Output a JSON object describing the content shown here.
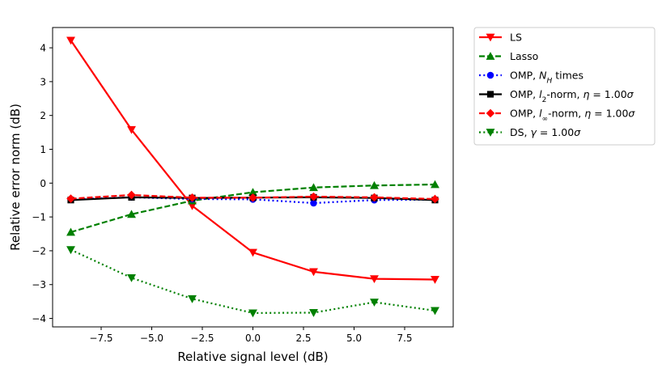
{
  "chart_data": {
    "type": "line",
    "title": "",
    "xlabel": "Relative signal level (dB)",
    "ylabel": "Relative error norm (dB)",
    "xlim": [
      -9.9,
      9.9
    ],
    "ylim": [
      -4.25,
      4.6
    ],
    "grid": false,
    "legend_position": "outside-right-top",
    "x": [
      -9,
      -6,
      -3,
      0,
      3,
      6,
      9
    ],
    "xticks": [
      -7.5,
      -5.0,
      -2.5,
      0.0,
      2.5,
      5.0,
      7.5
    ],
    "xtick_labels": [
      "−7.5",
      "−5.0",
      "−2.5",
      "0.0",
      "2.5",
      "5.0",
      "7.5"
    ],
    "yticks": [
      -4,
      -3,
      -2,
      -1,
      0,
      1,
      2,
      3,
      4
    ],
    "ytick_labels": [
      "−4",
      "−3",
      "−2",
      "−1",
      "0",
      "1",
      "2",
      "3",
      "4"
    ],
    "series": [
      {
        "name_parts": [
          {
            "t": "LS"
          }
        ],
        "color": "#ff0000",
        "linestyle": "solid",
        "marker": "triangle-down",
        "values": [
          4.22,
          1.58,
          -0.67,
          -2.05,
          -2.62,
          -2.83,
          -2.85
        ]
      },
      {
        "name_parts": [
          {
            "t": "Lasso"
          }
        ],
        "color": "#008000",
        "linestyle": "dashed",
        "marker": "triangle-up",
        "values": [
          -1.45,
          -0.92,
          -0.52,
          -0.27,
          -0.13,
          -0.07,
          -0.04
        ]
      },
      {
        "name_parts": [
          {
            "t": "OMP, "
          },
          {
            "t": "N",
            "i": true
          },
          {
            "t": "H",
            "i": true,
            "sub": true
          },
          {
            "t": " times"
          }
        ],
        "color": "#0000ff",
        "linestyle": "dotted",
        "marker": "circle",
        "values": [
          -0.48,
          -0.42,
          -0.47,
          -0.48,
          -0.59,
          -0.5,
          -0.49
        ]
      },
      {
        "name_parts": [
          {
            "t": "OMP, "
          },
          {
            "t": "l",
            "i": true
          },
          {
            "t": "2",
            "sub": true
          },
          {
            "t": "-norm, "
          },
          {
            "t": "η",
            "i": true
          },
          {
            "t": " = 1.00"
          },
          {
            "t": "σ",
            "i": true
          }
        ],
        "color": "#000000",
        "linestyle": "solid",
        "marker": "square",
        "values": [
          -0.5,
          -0.42,
          -0.44,
          -0.43,
          -0.42,
          -0.44,
          -0.5
        ]
      },
      {
        "name_parts": [
          {
            "t": "OMP, "
          },
          {
            "t": "l",
            "i": true
          },
          {
            "t": "∞",
            "sub": true
          },
          {
            "t": "-norm, "
          },
          {
            "t": "η",
            "i": true
          },
          {
            "t": " = 1.00"
          },
          {
            "t": "σ",
            "i": true
          }
        ],
        "color": "#ff0000",
        "linestyle": "dashed",
        "marker": "diamond",
        "values": [
          -0.46,
          -0.35,
          -0.43,
          -0.43,
          -0.4,
          -0.42,
          -0.47
        ]
      },
      {
        "name_parts": [
          {
            "t": "DS, "
          },
          {
            "t": "γ",
            "i": true
          },
          {
            "t": " = 1.00"
          },
          {
            "t": "σ",
            "i": true
          }
        ],
        "color": "#008000",
        "linestyle": "dotted",
        "marker": "triangle-down",
        "values": [
          -1.97,
          -2.8,
          -3.42,
          -3.84,
          -3.83,
          -3.52,
          -3.77
        ]
      }
    ]
  }
}
